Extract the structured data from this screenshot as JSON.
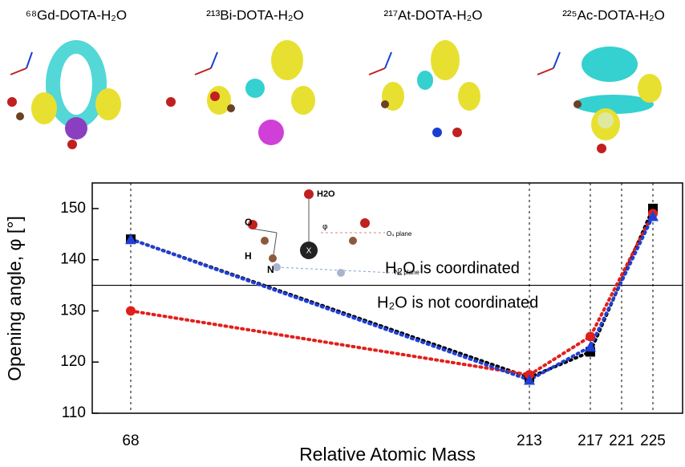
{
  "panels": [
    "⁶⁸Gd-DOTA-H₂O",
    "²¹³Bi-DOTA-H₂O",
    "²¹⁷At-DOTA-H₂O",
    "²²⁵Ac-DOTA-H₂O"
  ],
  "chart_data": {
    "type": "line",
    "xlabel": "Relative Atomic Mass",
    "ylabel": "Opening angle, φ [°]",
    "categories": [
      "68",
      "213",
      "217",
      "221",
      "225"
    ],
    "series": [
      {
        "color": "#000000",
        "marker": "square",
        "values": [
          144,
          117,
          122,
          null,
          150
        ]
      },
      {
        "color": "#e0201b",
        "marker": "circle",
        "values": [
          130,
          117.5,
          125,
          null,
          149
        ]
      },
      {
        "color": "#1f3fd6",
        "marker": "triangle",
        "values": [
          144,
          116.5,
          123,
          null,
          148.5
        ]
      }
    ],
    "ylim": [
      110,
      155
    ],
    "yticks": [
      110,
      120,
      130,
      140,
      150
    ],
    "threshold": 135,
    "annotations": [
      "H₂O is coordinated",
      "H₂O is not coordinated"
    ],
    "inset_labels": [
      "H2O",
      "O",
      "H",
      "N",
      "O₄ plane",
      "N₄ plane",
      "φ",
      "X"
    ]
  }
}
